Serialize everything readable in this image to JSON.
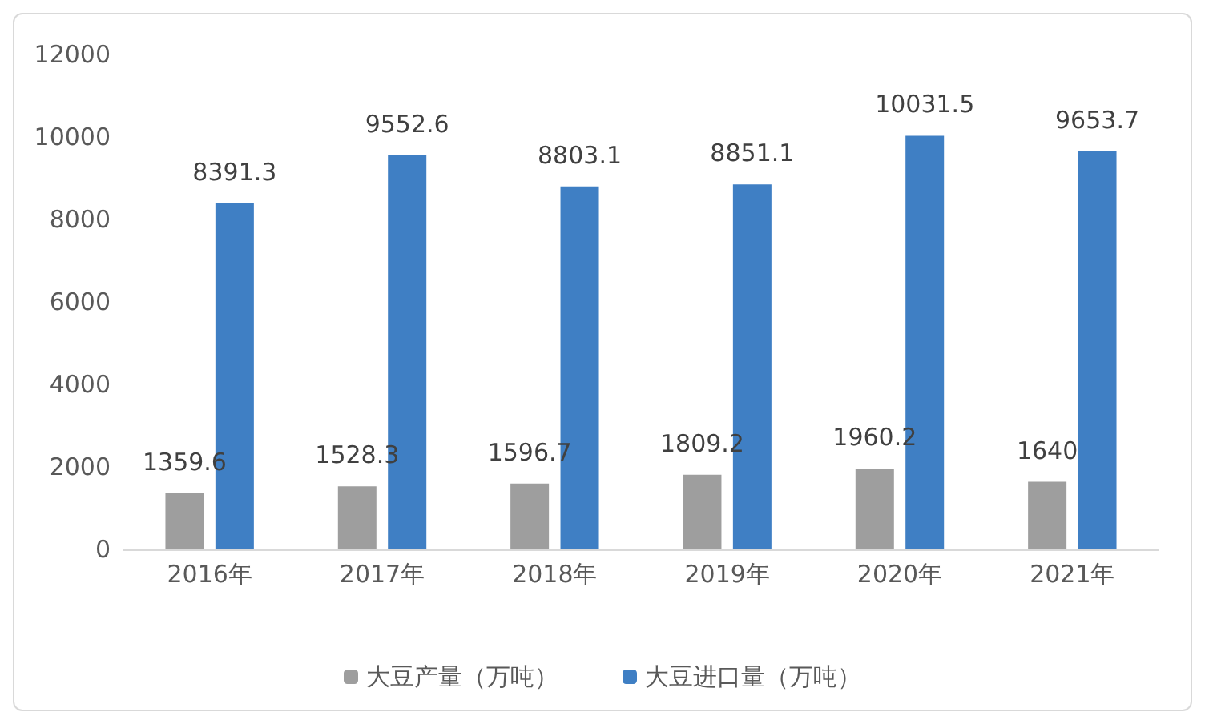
{
  "chart_data": {
    "type": "bar",
    "categories": [
      "2016年",
      "2017年",
      "2018年",
      "2019年",
      "2020年",
      "2021年"
    ],
    "series": [
      {
        "name": "大豆产量（万吨）",
        "color": "#9e9e9e",
        "values": [
          1359.6,
          1528.3,
          1596.7,
          1809.2,
          1960.2,
          1640
        ]
      },
      {
        "name": "大豆进口量（万吨）",
        "color": "#3f7fc4",
        "values": [
          8391.3,
          9552.6,
          8803.1,
          8851.1,
          10031.5,
          9653.7
        ]
      }
    ],
    "ylim": [
      0,
      12000
    ],
    "yticks": [
      0,
      2000,
      4000,
      6000,
      8000,
      10000,
      12000
    ],
    "grid": false,
    "legend": "bottom",
    "data_labels": true
  }
}
